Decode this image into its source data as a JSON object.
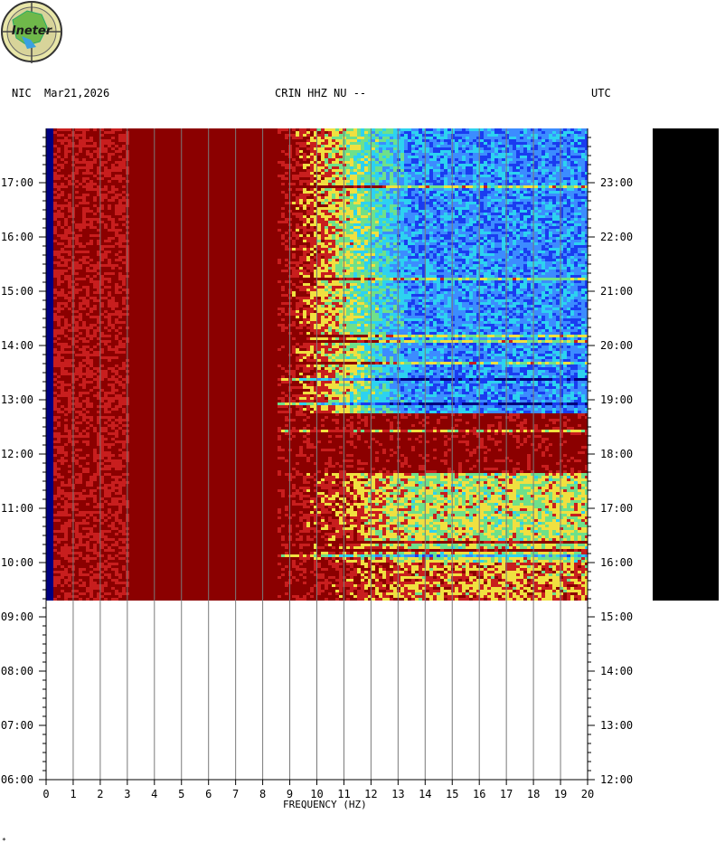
{
  "header": {
    "left_zone": "NIC",
    "date": "Mar21,2026",
    "station": "CRIN HHZ NU --",
    "right_zone": "UTC"
  },
  "logo": {
    "text": "Ineter"
  },
  "colors": {
    "dark_red": "#8b0000",
    "red": "#c81e1e",
    "yellow": "#f0e040",
    "green": "#6ee08a",
    "cyan": "#2dd2f0",
    "light_blue": "#3c8cff",
    "blue": "#1a3cf0",
    "navy": "#000080",
    "side_bar": "#000000"
  },
  "chart_data": {
    "type": "heatmap",
    "title": "CRIN HHZ NU --",
    "xlabel": "FREQUENCY (HZ)",
    "x_ticks": [
      "0",
      "1",
      "2",
      "3",
      "4",
      "5",
      "6",
      "7",
      "8",
      "9",
      "10",
      "11",
      "12",
      "13",
      "14",
      "15",
      "16",
      "17",
      "18",
      "19",
      "20"
    ],
    "xlim": [
      0,
      20
    ],
    "left_axis_label": "NIC",
    "left_ticks": [
      "06:00",
      "07:00",
      "08:00",
      "09:00",
      "10:00",
      "11:00",
      "12:00",
      "13:00",
      "14:00",
      "15:00",
      "16:00",
      "17:00"
    ],
    "right_axis_label": "UTC",
    "right_ticks": [
      "12:00",
      "13:00",
      "14:00",
      "15:00",
      "16:00",
      "17:00",
      "18:00",
      "19:00",
      "20:00",
      "21:00",
      "22:00",
      "23:00"
    ],
    "time_range_local": [
      "06:00",
      "18:00"
    ],
    "data_end_local": "09:20",
    "grid": "vertical lines at each 1 Hz",
    "description_bands": [
      {
        "from": "09:20",
        "to": "10:00",
        "low_freq_level": "high",
        "high_freq_level": "mixed"
      },
      {
        "from": "10:00",
        "to": "11:40",
        "low_freq_level": "high",
        "high_freq_level": "medium"
      },
      {
        "from": "11:40",
        "to": "12:45",
        "low_freq_level": "high",
        "high_freq_level": "high"
      },
      {
        "from": "12:45",
        "to": "15:30",
        "low_freq_level": "high",
        "high_freq_level": "low"
      },
      {
        "from": "15:30",
        "to": "18:00",
        "low_freq_level": "high",
        "high_freq_level": "low"
      }
    ]
  },
  "footer": {
    "mark": "*"
  }
}
